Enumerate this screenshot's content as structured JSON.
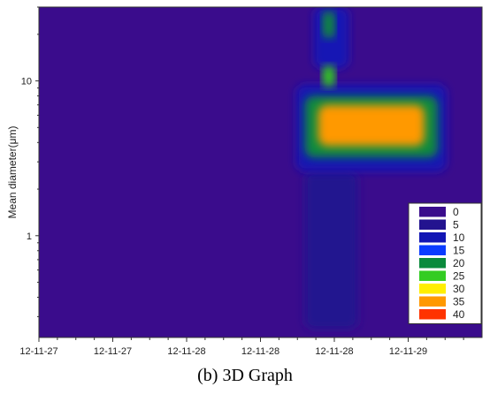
{
  "caption": "(b) 3D Graph",
  "chart_data": {
    "type": "heatmap",
    "ylabel": "Mean diameter(μm)",
    "yscale": "log",
    "ylim": [
      0.22,
      30
    ],
    "y_ticks": [
      {
        "value": 1,
        "label": "1"
      },
      {
        "value": 10,
        "label": "10"
      }
    ],
    "x_ticks": [
      "12-11-27",
      "12-11-27",
      "12-11-28",
      "12-11-28",
      "12-11-28",
      "12-11-29"
    ],
    "legend": {
      "placement": "bottom-right",
      "levels": [
        0,
        5,
        10,
        15,
        20,
        25,
        30,
        35,
        40
      ],
      "colors": [
        "#3a0c8c",
        "#23138f",
        "#1216b4",
        "#0a3cff",
        "#0a8a3c",
        "#33cc22",
        "#ffee00",
        "#ff9900",
        "#ff3300"
      ]
    },
    "background_level": 2,
    "hotspots": [
      {
        "t0": 0.63,
        "t1": 0.87,
        "d0": 3.8,
        "d1": 7.0,
        "level": 38
      },
      {
        "t0": 0.6,
        "t1": 0.9,
        "d0": 3.2,
        "d1": 8.0,
        "level": 22
      },
      {
        "t0": 0.58,
        "t1": 0.92,
        "d0": 2.6,
        "d1": 9.5,
        "level": 13
      },
      {
        "t0": 0.64,
        "t1": 0.668,
        "d0": 9.2,
        "d1": 12.5,
        "level": 26
      },
      {
        "t0": 0.64,
        "t1": 0.668,
        "d0": 19,
        "d1": 28,
        "level": 24
      },
      {
        "t0": 0.62,
        "t1": 0.7,
        "d0": 12,
        "d1": 30,
        "level": 12
      },
      {
        "t0": 0.6,
        "t1": 0.72,
        "d0": 0.25,
        "d1": 2.6,
        "level": 8
      }
    ]
  }
}
